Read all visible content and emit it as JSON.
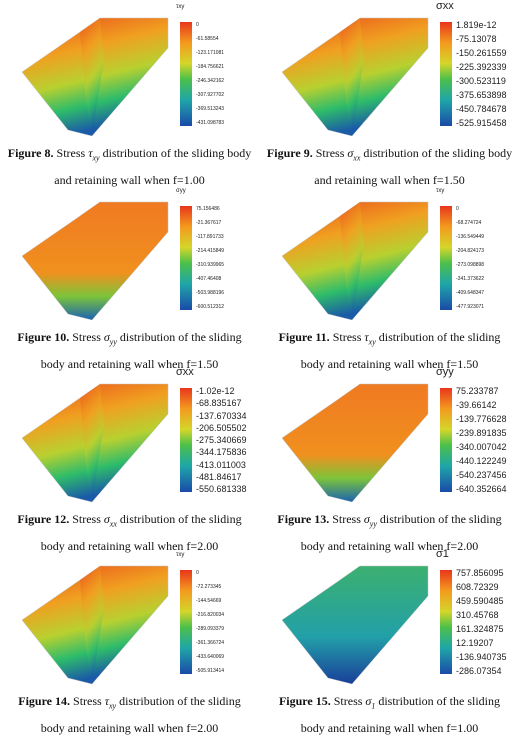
{
  "figures": [
    {
      "colorbar": {
        "title": "τxy",
        "labels": [
          "0",
          "-61.58554",
          "-123.171081",
          "-184.756621",
          "-246.342162",
          "-307.927702",
          "-369.513243",
          "-431.098783"
        ]
      },
      "caption": {
        "label": "Figure 8.",
        "before": "Stress",
        "symbol": "τ",
        "subscript": "xy",
        "after": "distribution of the sliding body and retaining wall when f=1.00"
      }
    },
    {
      "colorbar": {
        "title": "σxx",
        "labels": [
          "1.819e-12",
          "-75.13078",
          "-150.261559",
          "-225.392339",
          "-300.523119",
          "-375.653898",
          "-450.784678",
          "-525.915458"
        ]
      },
      "caption": {
        "label": "Figure 9.",
        "before": "Stress",
        "symbol": "σ",
        "subscript": "xx",
        "after": "distribution of the sliding body and retaining wall when f=1.50"
      }
    },
    {
      "colorbar": {
        "title": "σyy",
        "labels": [
          "75.156486",
          "-21.367617",
          "-117.891733",
          "-214.415849",
          "-310.939965",
          "-407.46408",
          "-503.988196",
          "-600.512312"
        ]
      },
      "caption": {
        "label": "Figure 10.",
        "before": "Stress",
        "symbol": "σ",
        "subscript": "yy",
        "after": "distribution of the sliding body and retaining wall when f=1.50"
      }
    },
    {
      "colorbar": {
        "title": "τxy",
        "labels": [
          "0",
          "-68.274724",
          "-136.549449",
          "-204.824173",
          "-273.098898",
          "-341.373622",
          "-409.648347",
          "-477.923071"
        ]
      },
      "caption": {
        "label": "Figure 11.",
        "before": "Stress",
        "symbol": "τ",
        "subscript": "xy",
        "after": "distribution of the sliding body and retaining wall when f=1.50"
      }
    },
    {
      "colorbar": {
        "title": "σxx",
        "labels": [
          "-1.02e-12",
          "-68.835167",
          "-137.670334",
          "-206.505502",
          "-275.340669",
          "-344.175836",
          "-413.011003",
          "-481.84617",
          "-550.681338"
        ]
      },
      "caption": {
        "label": "Figure 12.",
        "before": "Stress",
        "symbol": "σ",
        "subscript": "xx",
        "after": "distribution of the sliding body and retaining wall when f=2.00"
      }
    },
    {
      "colorbar": {
        "title": "σyy",
        "labels": [
          "75.233787",
          "-39.66142",
          "-139.776628",
          "-239.891835",
          "-340.007042",
          "-440.122249",
          "-540.237456",
          "-640.352664"
        ]
      },
      "caption": {
        "label": "Figure 13.",
        "before": "Stress",
        "symbol": "σ",
        "subscript": "yy",
        "after": "distribution of the sliding body and retaining wall when f=2.00"
      }
    },
    {
      "colorbar": {
        "title": "τxy",
        "labels": [
          "0",
          "-72.273345",
          "-144.54669",
          "-216.820034",
          "-289.093379",
          "-361.366724",
          "-433.640069",
          "-505.913414"
        ]
      },
      "caption": {
        "label": "Figure 14.",
        "before": "Stress",
        "symbol": "τ",
        "subscript": "xy",
        "after": "distribution of the sliding body and retaining wall when f=2.00"
      }
    },
    {
      "colorbar": {
        "title": "σ1",
        "labels": [
          "757.856095",
          "608.72329",
          "459.590485",
          "310.45768",
          "161.324875",
          "12.19207",
          "-136.940735",
          "-286.07354"
        ]
      },
      "caption": {
        "label": "Figure 15.",
        "before": "Stress",
        "symbol": "σ",
        "subscript": "1",
        "after": "distribution of the sliding body and retaining wall when f=1.00"
      }
    }
  ]
}
